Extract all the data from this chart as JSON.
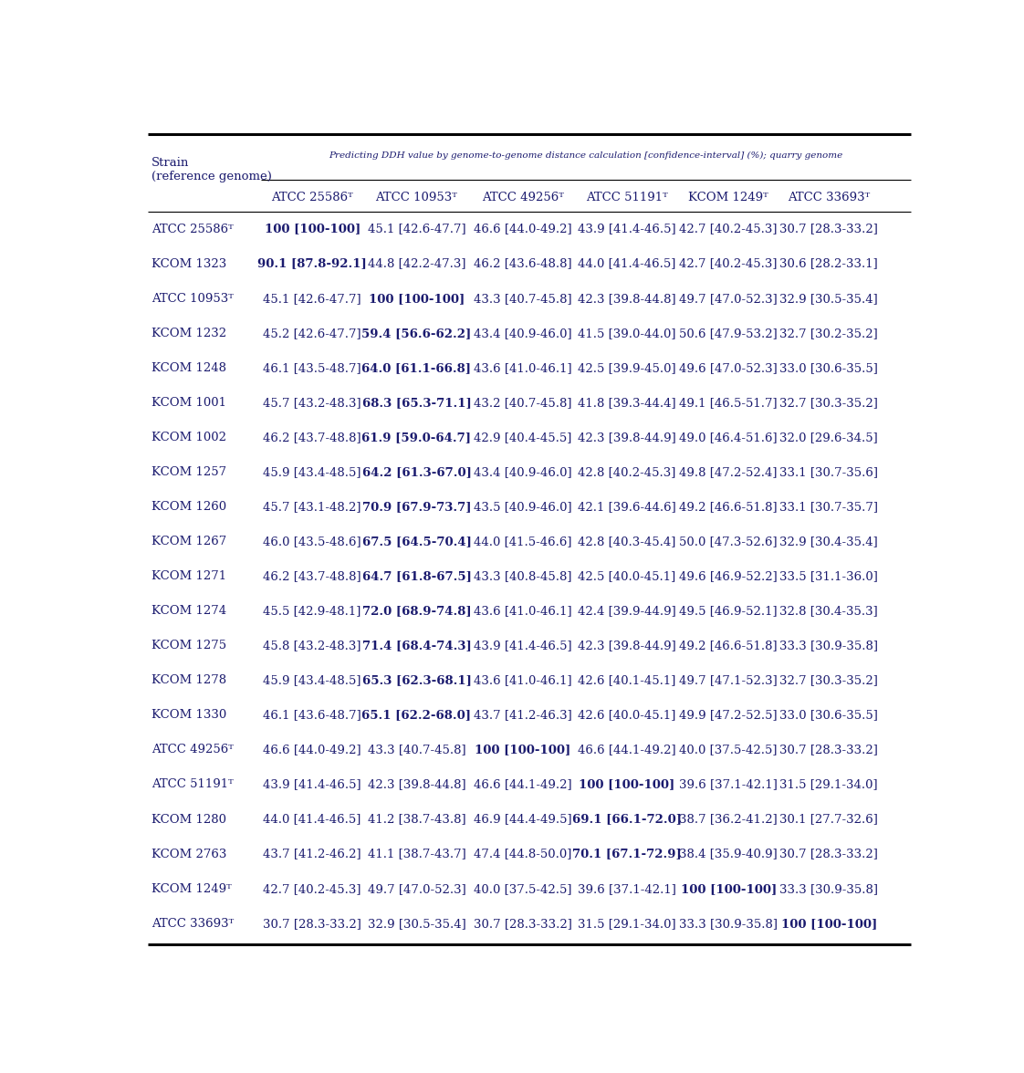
{
  "title_text": "Predicting DDH value by genome-to-genome distance calculation [confidence-interval] (%); quarry genome",
  "col_headers": [
    "ATCC 25586",
    "ATCC 10953",
    "ATCC 49256",
    "ATCC 51191",
    "KCOM 1249",
    "ATCC 33693"
  ],
  "col_headers_sup": [
    "T",
    "T",
    "T",
    "T",
    "T",
    "T"
  ],
  "rows": [
    {
      "strain": "ATCC 25586",
      "strain_sup": "T",
      "values": [
        {
          "text": "100 [100-100]",
          "bold": true
        },
        {
          "text": "45.1 [42.6-47.7]",
          "bold": false
        },
        {
          "text": "46.6 [44.0-49.2]",
          "bold": false
        },
        {
          "text": "43.9 [41.4-46.5]",
          "bold": false
        },
        {
          "text": "42.7 [40.2-45.3]",
          "bold": false
        },
        {
          "text": "30.7 [28.3-33.2]",
          "bold": false
        }
      ]
    },
    {
      "strain": "KCOM 1323",
      "strain_sup": "",
      "values": [
        {
          "text": "90.1 [87.8-92.1]",
          "bold": true
        },
        {
          "text": "44.8 [42.2-47.3]",
          "bold": false
        },
        {
          "text": "46.2 [43.6-48.8]",
          "bold": false
        },
        {
          "text": "44.0 [41.4-46.5]",
          "bold": false
        },
        {
          "text": "42.7 [40.2-45.3]",
          "bold": false
        },
        {
          "text": "30.6 [28.2-33.1]",
          "bold": false
        }
      ]
    },
    {
      "strain": "ATCC 10953",
      "strain_sup": "T",
      "values": [
        {
          "text": "45.1 [42.6-47.7]",
          "bold": false
        },
        {
          "text": "100 [100-100]",
          "bold": true
        },
        {
          "text": "43.3 [40.7-45.8]",
          "bold": false
        },
        {
          "text": "42.3 [39.8-44.8]",
          "bold": false
        },
        {
          "text": "49.7 [47.0-52.3]",
          "bold": false
        },
        {
          "text": "32.9 [30.5-35.4]",
          "bold": false
        }
      ]
    },
    {
      "strain": "KCOM 1232",
      "strain_sup": "",
      "values": [
        {
          "text": "45.2 [42.6-47.7]",
          "bold": false
        },
        {
          "text": "59.4 [56.6-62.2]",
          "bold": true
        },
        {
          "text": "43.4 [40.9-46.0]",
          "bold": false
        },
        {
          "text": "41.5 [39.0-44.0]",
          "bold": false
        },
        {
          "text": "50.6 [47.9-53.2]",
          "bold": false
        },
        {
          "text": "32.7 [30.2-35.2]",
          "bold": false
        }
      ]
    },
    {
      "strain": "KCOM 1248",
      "strain_sup": "",
      "values": [
        {
          "text": "46.1 [43.5-48.7]",
          "bold": false
        },
        {
          "text": "64.0 [61.1-66.8]",
          "bold": true
        },
        {
          "text": "43.6 [41.0-46.1]",
          "bold": false
        },
        {
          "text": "42.5 [39.9-45.0]",
          "bold": false
        },
        {
          "text": "49.6 [47.0-52.3]",
          "bold": false
        },
        {
          "text": "33.0 [30.6-35.5]",
          "bold": false
        }
      ]
    },
    {
      "strain": "KCOM 1001",
      "strain_sup": "",
      "values": [
        {
          "text": "45.7 [43.2-48.3]",
          "bold": false
        },
        {
          "text": "68.3 [65.3-71.1]",
          "bold": true
        },
        {
          "text": "43.2 [40.7-45.8]",
          "bold": false
        },
        {
          "text": "41.8 [39.3-44.4]",
          "bold": false
        },
        {
          "text": "49.1 [46.5-51.7]",
          "bold": false
        },
        {
          "text": "32.7 [30.3-35.2]",
          "bold": false
        }
      ]
    },
    {
      "strain": "KCOM 1002",
      "strain_sup": "",
      "values": [
        {
          "text": "46.2 [43.7-48.8]",
          "bold": false
        },
        {
          "text": "61.9 [59.0-64.7]",
          "bold": true
        },
        {
          "text": "42.9 [40.4-45.5]",
          "bold": false
        },
        {
          "text": "42.3 [39.8-44.9]",
          "bold": false
        },
        {
          "text": "49.0 [46.4-51.6]",
          "bold": false
        },
        {
          "text": "32.0 [29.6-34.5]",
          "bold": false
        }
      ]
    },
    {
      "strain": "KCOM 1257",
      "strain_sup": "",
      "values": [
        {
          "text": "45.9 [43.4-48.5]",
          "bold": false
        },
        {
          "text": "64.2 [61.3-67.0]",
          "bold": true
        },
        {
          "text": "43.4 [40.9-46.0]",
          "bold": false
        },
        {
          "text": "42.8 [40.2-45.3]",
          "bold": false
        },
        {
          "text": "49.8 [47.2-52.4]",
          "bold": false
        },
        {
          "text": "33.1 [30.7-35.6]",
          "bold": false
        }
      ]
    },
    {
      "strain": "KCOM 1260",
      "strain_sup": "",
      "values": [
        {
          "text": "45.7 [43.1-48.2]",
          "bold": false
        },
        {
          "text": "70.9 [67.9-73.7]",
          "bold": true
        },
        {
          "text": "43.5 [40.9-46.0]",
          "bold": false
        },
        {
          "text": "42.1 [39.6-44.6]",
          "bold": false
        },
        {
          "text": "49.2 [46.6-51.8]",
          "bold": false
        },
        {
          "text": "33.1 [30.7-35.7]",
          "bold": false
        }
      ]
    },
    {
      "strain": "KCOM 1267",
      "strain_sup": "",
      "values": [
        {
          "text": "46.0 [43.5-48.6]",
          "bold": false
        },
        {
          "text": "67.5 [64.5-70.4]",
          "bold": true
        },
        {
          "text": "44.0 [41.5-46.6]",
          "bold": false
        },
        {
          "text": "42.8 [40.3-45.4]",
          "bold": false
        },
        {
          "text": "50.0 [47.3-52.6]",
          "bold": false
        },
        {
          "text": "32.9 [30.4-35.4]",
          "bold": false
        }
      ]
    },
    {
      "strain": "KCOM 1271",
      "strain_sup": "",
      "values": [
        {
          "text": "46.2 [43.7-48.8]",
          "bold": false
        },
        {
          "text": "64.7 [61.8-67.5]",
          "bold": true
        },
        {
          "text": "43.3 [40.8-45.8]",
          "bold": false
        },
        {
          "text": "42.5 [40.0-45.1]",
          "bold": false
        },
        {
          "text": "49.6 [46.9-52.2]",
          "bold": false
        },
        {
          "text": "33.5 [31.1-36.0]",
          "bold": false
        }
      ]
    },
    {
      "strain": "KCOM 1274",
      "strain_sup": "",
      "values": [
        {
          "text": "45.5 [42.9-48.1]",
          "bold": false
        },
        {
          "text": "72.0 [68.9-74.8]",
          "bold": true
        },
        {
          "text": "43.6 [41.0-46.1]",
          "bold": false
        },
        {
          "text": "42.4 [39.9-44.9]",
          "bold": false
        },
        {
          "text": "49.5 [46.9-52.1]",
          "bold": false
        },
        {
          "text": "32.8 [30.4-35.3]",
          "bold": false
        }
      ]
    },
    {
      "strain": "KCOM 1275",
      "strain_sup": "",
      "values": [
        {
          "text": "45.8 [43.2-48.3]",
          "bold": false
        },
        {
          "text": "71.4 [68.4-74.3]",
          "bold": true
        },
        {
          "text": "43.9 [41.4-46.5]",
          "bold": false
        },
        {
          "text": "42.3 [39.8-44.9]",
          "bold": false
        },
        {
          "text": "49.2 [46.6-51.8]",
          "bold": false
        },
        {
          "text": "33.3 [30.9-35.8]",
          "bold": false
        }
      ]
    },
    {
      "strain": "KCOM 1278",
      "strain_sup": "",
      "values": [
        {
          "text": "45.9 [43.4-48.5]",
          "bold": false
        },
        {
          "text": "65.3 [62.3-68.1]",
          "bold": true
        },
        {
          "text": "43.6 [41.0-46.1]",
          "bold": false
        },
        {
          "text": "42.6 [40.1-45.1]",
          "bold": false
        },
        {
          "text": "49.7 [47.1-52.3]",
          "bold": false
        },
        {
          "text": "32.7 [30.3-35.2]",
          "bold": false
        }
      ]
    },
    {
      "strain": "KCOM 1330",
      "strain_sup": "",
      "values": [
        {
          "text": "46.1 [43.6-48.7]",
          "bold": false
        },
        {
          "text": "65.1 [62.2-68.0]",
          "bold": true
        },
        {
          "text": "43.7 [41.2-46.3]",
          "bold": false
        },
        {
          "text": "42.6 [40.0-45.1]",
          "bold": false
        },
        {
          "text": "49.9 [47.2-52.5]",
          "bold": false
        },
        {
          "text": "33.0 [30.6-35.5]",
          "bold": false
        }
      ]
    },
    {
      "strain": "ATCC 49256",
      "strain_sup": "T",
      "values": [
        {
          "text": "46.6 [44.0-49.2]",
          "bold": false
        },
        {
          "text": "43.3 [40.7-45.8]",
          "bold": false
        },
        {
          "text": "100 [100-100]",
          "bold": true
        },
        {
          "text": "46.6 [44.1-49.2]",
          "bold": false
        },
        {
          "text": "40.0 [37.5-42.5]",
          "bold": false
        },
        {
          "text": "30.7 [28.3-33.2]",
          "bold": false
        }
      ]
    },
    {
      "strain": "ATCC 51191",
      "strain_sup": "T",
      "values": [
        {
          "text": "43.9 [41.4-46.5]",
          "bold": false
        },
        {
          "text": "42.3 [39.8-44.8]",
          "bold": false
        },
        {
          "text": "46.6 [44.1-49.2]",
          "bold": false
        },
        {
          "text": "100 [100-100]",
          "bold": true
        },
        {
          "text": "39.6 [37.1-42.1]",
          "bold": false
        },
        {
          "text": "31.5 [29.1-34.0]",
          "bold": false
        }
      ]
    },
    {
      "strain": "KCOM 1280",
      "strain_sup": "",
      "values": [
        {
          "text": "44.0 [41.4-46.5]",
          "bold": false
        },
        {
          "text": "41.2 [38.7-43.8]",
          "bold": false
        },
        {
          "text": "46.9 [44.4-49.5]",
          "bold": false
        },
        {
          "text": "69.1 [66.1-72.0]",
          "bold": true
        },
        {
          "text": "38.7 [36.2-41.2]",
          "bold": false
        },
        {
          "text": "30.1 [27.7-32.6]",
          "bold": false
        }
      ]
    },
    {
      "strain": "KCOM 2763",
      "strain_sup": "",
      "values": [
        {
          "text": "43.7 [41.2-46.2]",
          "bold": false
        },
        {
          "text": "41.1 [38.7-43.7]",
          "bold": false
        },
        {
          "text": "47.4 [44.8-50.0]",
          "bold": false
        },
        {
          "text": "70.1 [67.1-72.9]",
          "bold": true
        },
        {
          "text": "38.4 [35.9-40.9]",
          "bold": false
        },
        {
          "text": "30.7 [28.3-33.2]",
          "bold": false
        }
      ]
    },
    {
      "strain": "KCOM 1249",
      "strain_sup": "T",
      "values": [
        {
          "text": "42.7 [40.2-45.3]",
          "bold": false
        },
        {
          "text": "49.7 [47.0-52.3]",
          "bold": false
        },
        {
          "text": "40.0 [37.5-42.5]",
          "bold": false
        },
        {
          "text": "39.6 [37.1-42.1]",
          "bold": false
        },
        {
          "text": "100 [100-100]",
          "bold": true
        },
        {
          "text": "33.3 [30.9-35.8]",
          "bold": false
        }
      ]
    },
    {
      "strain": "ATCC 33693",
      "strain_sup": "T",
      "values": [
        {
          "text": "30.7 [28.3-33.2]",
          "bold": false
        },
        {
          "text": "32.9 [30.5-35.4]",
          "bold": false
        },
        {
          "text": "30.7 [28.3-33.2]",
          "bold": false
        },
        {
          "text": "31.5 [29.1-34.0]",
          "bold": false
        },
        {
          "text": "33.3 [30.9-35.8]",
          "bold": false
        },
        {
          "text": "100 [100-100]",
          "bold": true
        }
      ]
    }
  ],
  "text_color": "#1a1a6e",
  "bg_color": "#ffffff"
}
